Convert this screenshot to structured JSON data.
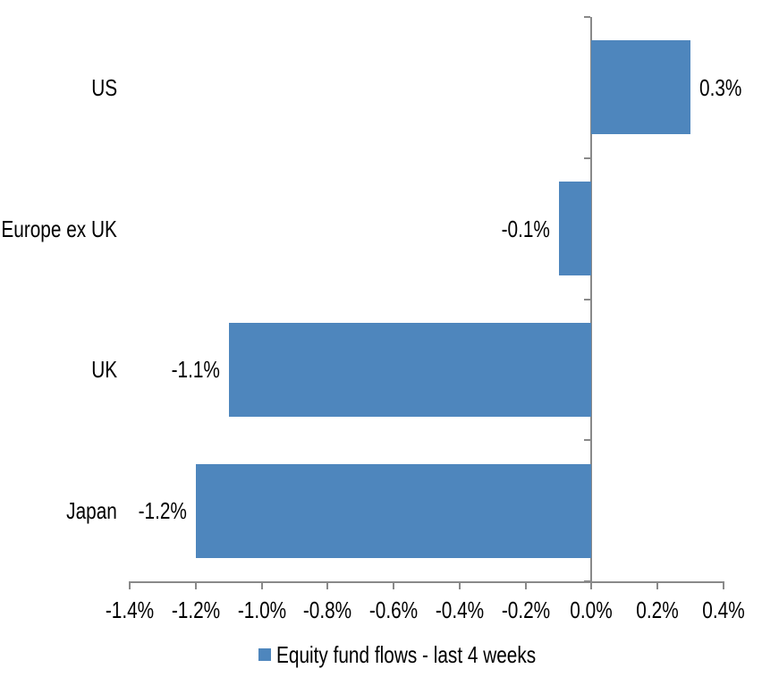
{
  "chart_data": {
    "type": "bar",
    "orientation": "horizontal",
    "title": "",
    "categories": [
      "US",
      "Europe ex UK",
      "UK",
      "Japan"
    ],
    "series": [
      {
        "name": "Equity fund flows - last 4 weeks",
        "values": [
          0.3,
          -0.1,
          -1.1,
          -1.2
        ]
      }
    ],
    "data_labels": [
      "0.3%",
      "-0.1%",
      "-1.1%",
      "-1.2%"
    ],
    "value_unit": "%",
    "xlim": [
      -1.4,
      0.4
    ],
    "x_ticks": [
      -1.4,
      -1.2,
      -1.0,
      -0.8,
      -0.6,
      -0.4,
      -0.2,
      0.0,
      0.2,
      0.4
    ],
    "x_tick_labels": [
      "-1.4%",
      "-1.2%",
      "-1.0%",
      "-0.8%",
      "-0.6%",
      "-0.4%",
      "-0.2%",
      "0.0%",
      "0.2%",
      "0.4%"
    ],
    "grid": false,
    "legend_position": "bottom",
    "colors": {
      "bar": "#4E86BD",
      "axis": "#898989",
      "text": "#000000",
      "background": "#FFFFFF"
    }
  },
  "legend": {
    "label": "Equity fund flows - last 4 weeks"
  }
}
